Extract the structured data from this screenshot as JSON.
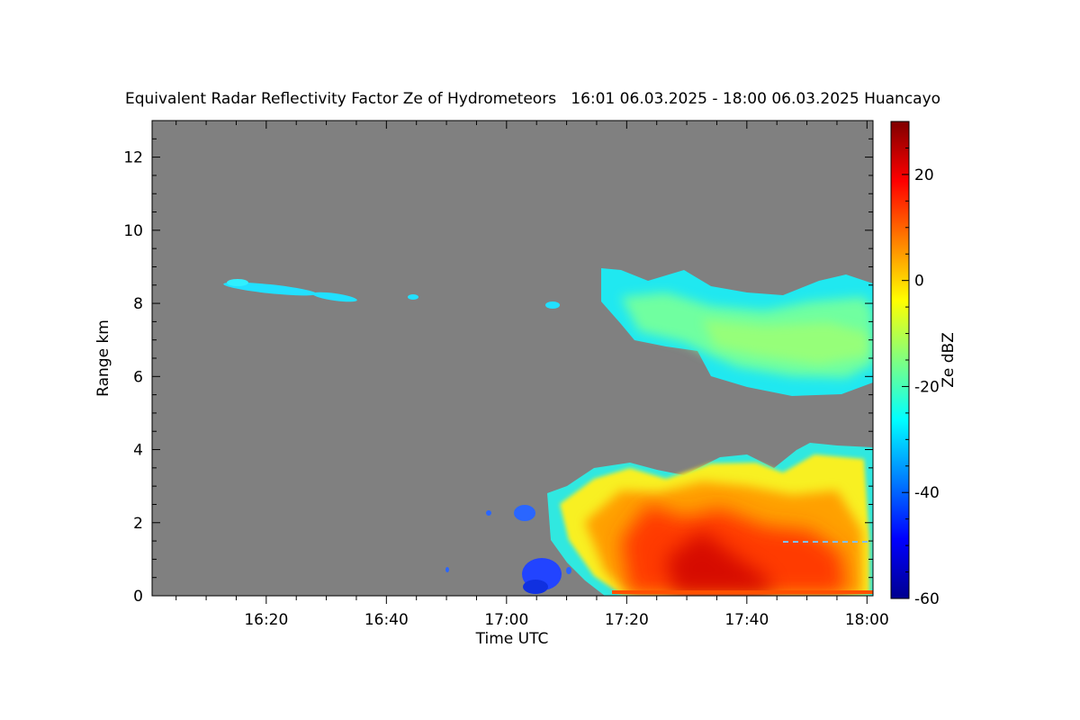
{
  "chart_data": {
    "type": "heatmap",
    "title": "Equivalent Radar Reflectivity Factor Ze of Hydrometeors   16:01 06.03.2025 - 18:00 06.03.2025 Huancayo",
    "xlabel": "Time UTC",
    "ylabel": "Range km",
    "x_ticks": [
      "16:20",
      "16:40",
      "17:00",
      "17:20",
      "17:40",
      "18:00"
    ],
    "x_tick_values_min": [
      20,
      40,
      60,
      80,
      100,
      120
    ],
    "xlim_min": [
      1,
      121
    ],
    "y_ticks": [
      "0",
      "2",
      "4",
      "6",
      "8",
      "10",
      "12"
    ],
    "y_tick_values": [
      0,
      2,
      4,
      6,
      8,
      10,
      12
    ],
    "ylim": [
      0,
      13
    ],
    "colorbar": {
      "label": "Ze dBZ",
      "ticks": [
        "20",
        "0",
        "-20",
        "-40",
        "-60"
      ],
      "tick_values": [
        20,
        0,
        -20,
        -40,
        -60
      ],
      "range": [
        -60,
        30
      ],
      "colormap": "jet"
    },
    "background_color": "#808080",
    "echo_features": [
      {
        "time_min": [
          13,
          36
        ],
        "range_km": [
          8.0,
          8.7
        ],
        "ze_dbz": -25
      },
      {
        "time_min": [
          44,
          46
        ],
        "range_km": [
          8.1,
          8.3
        ],
        "ze_dbz": -25
      },
      {
        "time_min": [
          67,
          70
        ],
        "range_km": [
          7.9,
          8.1
        ],
        "ze_dbz": -22
      },
      {
        "time_min": [
          76,
          121
        ],
        "range_km": [
          5.6,
          9.0
        ],
        "ze_dbz": -22
      },
      {
        "time_min": [
          69,
          121
        ],
        "range_km": [
          0,
          4.2
        ],
        "ze_dbz": 10
      },
      {
        "time_min": [
          62,
          70
        ],
        "range_km": [
          0,
          2.6
        ],
        "ze_dbz": -50
      }
    ]
  }
}
